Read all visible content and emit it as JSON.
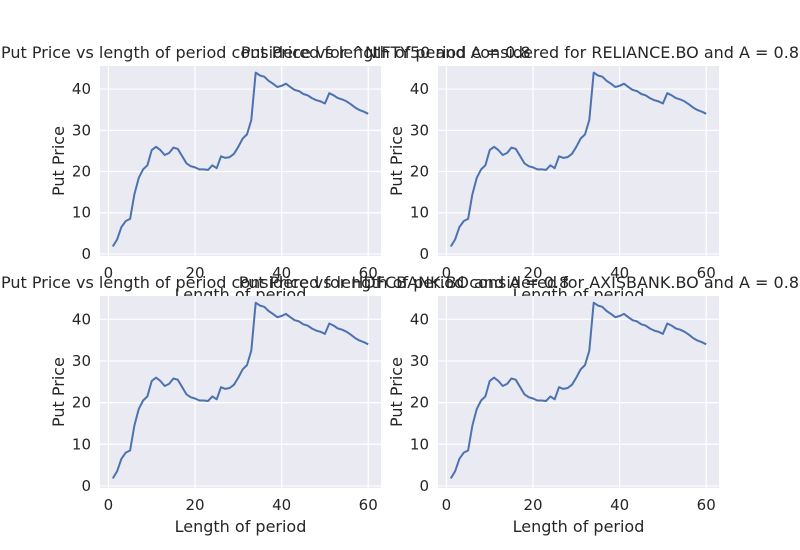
{
  "chart_data": [
    {
      "type": "line",
      "title": "Put Price vs length of period considered for ^NIFTY50 and A = 0.8",
      "xlabel": "Length of period",
      "ylabel": "Put Price",
      "xlim": [
        -1.95,
        62.95
      ],
      "ylim": [
        -0.5,
        45.6
      ],
      "xticks": [
        0,
        20,
        40,
        60
      ],
      "yticks": [
        0,
        10,
        20,
        30,
        40
      ],
      "grid": true,
      "x": [
        1,
        2,
        3,
        4,
        5,
        6,
        7,
        8,
        9,
        10,
        11,
        12,
        13,
        14,
        15,
        16,
        17,
        18,
        19,
        20,
        21,
        22,
        23,
        24,
        25,
        26,
        27,
        28,
        29,
        30,
        31,
        32,
        33,
        34,
        35,
        36,
        37,
        38,
        39,
        40,
        41,
        42,
        43,
        44,
        45,
        46,
        47,
        48,
        49,
        50,
        51,
        52,
        53,
        54,
        55,
        56,
        57,
        58,
        59,
        60
      ],
      "values": [
        1.8,
        3.5,
        6.5,
        8.0,
        8.5,
        14.5,
        18.5,
        20.5,
        21.5,
        25.2,
        26.0,
        25.2,
        24.0,
        24.5,
        25.8,
        25.5,
        23.8,
        22.0,
        21.3,
        21.0,
        20.5,
        20.5,
        20.4,
        21.5,
        20.8,
        23.7,
        23.3,
        23.5,
        24.3,
        26.0,
        28.0,
        29.0,
        32.5,
        44.0,
        43.3,
        43.0,
        42.0,
        41.3,
        40.5,
        40.8,
        41.3,
        40.5,
        39.8,
        39.5,
        38.8,
        38.5,
        37.8,
        37.3,
        37.0,
        36.5,
        39.0,
        38.5,
        37.8,
        37.5,
        37.0,
        36.3,
        35.5,
        34.9,
        34.5,
        34.0
      ]
    },
    {
      "type": "line",
      "title": "Put Price vs length of period considered for RELIANCE.BO and A = 0.8",
      "xlabel": "Length of period",
      "ylabel": "Put Price",
      "xlim": [
        -1.95,
        62.95
      ],
      "ylim": [
        -0.5,
        45.6
      ],
      "xticks": [
        0,
        20,
        40,
        60
      ],
      "yticks": [
        0,
        10,
        20,
        30,
        40
      ],
      "grid": true,
      "x": [
        1,
        2,
        3,
        4,
        5,
        6,
        7,
        8,
        9,
        10,
        11,
        12,
        13,
        14,
        15,
        16,
        17,
        18,
        19,
        20,
        21,
        22,
        23,
        24,
        25,
        26,
        27,
        28,
        29,
        30,
        31,
        32,
        33,
        34,
        35,
        36,
        37,
        38,
        39,
        40,
        41,
        42,
        43,
        44,
        45,
        46,
        47,
        48,
        49,
        50,
        51,
        52,
        53,
        54,
        55,
        56,
        57,
        58,
        59,
        60
      ],
      "values": [
        1.8,
        3.5,
        6.5,
        8.0,
        8.5,
        14.5,
        18.5,
        20.5,
        21.5,
        25.2,
        26.0,
        25.2,
        24.0,
        24.5,
        25.8,
        25.5,
        23.8,
        22.0,
        21.3,
        21.0,
        20.5,
        20.5,
        20.4,
        21.5,
        20.8,
        23.7,
        23.3,
        23.5,
        24.3,
        26.0,
        28.0,
        29.0,
        32.5,
        44.0,
        43.3,
        43.0,
        42.0,
        41.3,
        40.5,
        40.8,
        41.3,
        40.5,
        39.8,
        39.5,
        38.8,
        38.5,
        37.8,
        37.3,
        37.0,
        36.5,
        39.0,
        38.5,
        37.8,
        37.5,
        37.0,
        36.3,
        35.5,
        34.9,
        34.5,
        34.0
      ]
    },
    {
      "type": "line",
      "title": "Put Price vs length of period considered for HDFCBANK.BO and A = 0.8",
      "xlabel": "Length of period",
      "ylabel": "Put Price",
      "xlim": [
        -1.95,
        62.95
      ],
      "ylim": [
        -0.5,
        45.6
      ],
      "xticks": [
        0,
        20,
        40,
        60
      ],
      "yticks": [
        0,
        10,
        20,
        30,
        40
      ],
      "grid": true,
      "x": [
        1,
        2,
        3,
        4,
        5,
        6,
        7,
        8,
        9,
        10,
        11,
        12,
        13,
        14,
        15,
        16,
        17,
        18,
        19,
        20,
        21,
        22,
        23,
        24,
        25,
        26,
        27,
        28,
        29,
        30,
        31,
        32,
        33,
        34,
        35,
        36,
        37,
        38,
        39,
        40,
        41,
        42,
        43,
        44,
        45,
        46,
        47,
        48,
        49,
        50,
        51,
        52,
        53,
        54,
        55,
        56,
        57,
        58,
        59,
        60
      ],
      "values": [
        1.8,
        3.5,
        6.5,
        8.0,
        8.5,
        14.5,
        18.5,
        20.5,
        21.5,
        25.2,
        26.0,
        25.2,
        24.0,
        24.5,
        25.8,
        25.5,
        23.8,
        22.0,
        21.3,
        21.0,
        20.5,
        20.5,
        20.4,
        21.5,
        20.8,
        23.7,
        23.3,
        23.5,
        24.3,
        26.0,
        28.0,
        29.0,
        32.5,
        44.0,
        43.3,
        43.0,
        42.0,
        41.3,
        40.5,
        40.8,
        41.3,
        40.5,
        39.8,
        39.5,
        38.8,
        38.5,
        37.8,
        37.3,
        37.0,
        36.5,
        39.0,
        38.5,
        37.8,
        37.5,
        37.0,
        36.3,
        35.5,
        34.9,
        34.5,
        34.0
      ]
    },
    {
      "type": "line",
      "title": "Put Price vs length of period considered for AXISBANK.BO and A = 0.8",
      "xlabel": "Length of period",
      "ylabel": "Put Price",
      "xlim": [
        -1.95,
        62.95
      ],
      "ylim": [
        -0.5,
        45.6
      ],
      "xticks": [
        0,
        20,
        40,
        60
      ],
      "yticks": [
        0,
        10,
        20,
        30,
        40
      ],
      "grid": true,
      "x": [
        1,
        2,
        3,
        4,
        5,
        6,
        7,
        8,
        9,
        10,
        11,
        12,
        13,
        14,
        15,
        16,
        17,
        18,
        19,
        20,
        21,
        22,
        23,
        24,
        25,
        26,
        27,
        28,
        29,
        30,
        31,
        32,
        33,
        34,
        35,
        36,
        37,
        38,
        39,
        40,
        41,
        42,
        43,
        44,
        45,
        46,
        47,
        48,
        49,
        50,
        51,
        52,
        53,
        54,
        55,
        56,
        57,
        58,
        59,
        60
      ],
      "values": [
        1.8,
        3.5,
        6.5,
        8.0,
        8.5,
        14.5,
        18.5,
        20.5,
        21.5,
        25.2,
        26.0,
        25.2,
        24.0,
        24.5,
        25.8,
        25.5,
        23.8,
        22.0,
        21.3,
        21.0,
        20.5,
        20.5,
        20.4,
        21.5,
        20.8,
        23.7,
        23.3,
        23.5,
        24.3,
        26.0,
        28.0,
        29.0,
        32.5,
        44.0,
        43.3,
        43.0,
        42.0,
        41.3,
        40.5,
        40.8,
        41.3,
        40.5,
        39.8,
        39.5,
        38.8,
        38.5,
        37.8,
        37.3,
        37.0,
        36.5,
        39.0,
        38.5,
        37.8,
        37.5,
        37.0,
        36.3,
        35.5,
        34.9,
        34.5,
        34.0
      ]
    }
  ]
}
